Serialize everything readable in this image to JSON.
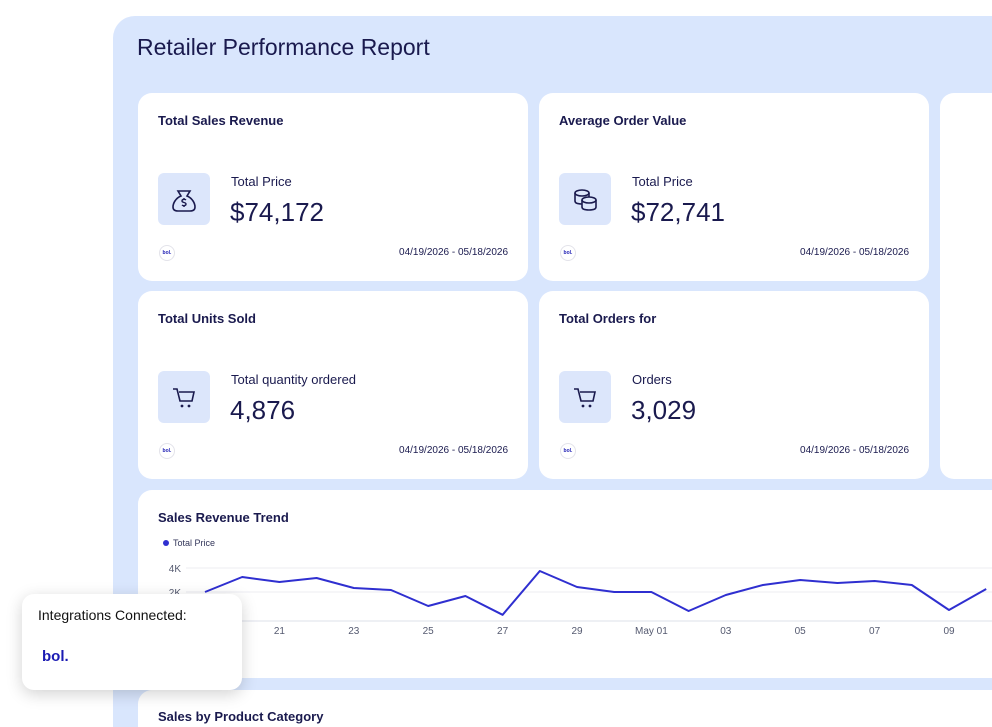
{
  "header": {
    "title": "Retailer Performance Report"
  },
  "cards": [
    {
      "title": "Total Sales Revenue",
      "metric_label": "Total Price",
      "value": "$74,172",
      "source": "bol.",
      "date_range": "04/19/2026 - 05/18/2026"
    },
    {
      "title": "Average Order Value",
      "metric_label": "Total Price",
      "value": "$72,741",
      "source": "bol.",
      "date_range": "04/19/2026 - 05/18/2026"
    },
    {
      "title": "Total Units Sold",
      "metric_label": "Total quantity ordered",
      "value": "4,876",
      "source": "bol.",
      "date_range": "04/19/2026 - 05/18/2026"
    },
    {
      "title": "Total Orders for",
      "metric_label": "Orders",
      "value": "3,029",
      "source": "bol.",
      "date_range": "04/19/2026 - 05/18/2026"
    }
  ],
  "chart_data": {
    "type": "line",
    "title": "Sales Revenue Trend",
    "categories": [
      null,
      null,
      "21",
      null,
      "23",
      null,
      "25",
      null,
      "27",
      null,
      "29",
      null,
      "May 01",
      null,
      "03",
      null,
      "05",
      null,
      "07",
      null,
      "09",
      null
    ],
    "series": [
      {
        "name": "Total Price",
        "color": "#2f2fd0",
        "values": [
          2000,
          3250,
          2830,
          3170,
          2330,
          2170,
          830,
          1670,
          100,
          3750,
          2420,
          2000,
          2000,
          420,
          1750,
          2580,
          3000,
          2750,
          2920,
          2580,
          500,
          2250
        ]
      }
    ],
    "ylim": [
      0,
      4000
    ],
    "yticks": [
      {
        "value": 2000,
        "label": "2K"
      },
      {
        "value": 4000,
        "label": "4K"
      }
    ]
  },
  "sections": {
    "product_category": "Sales by Product Category"
  },
  "integrations": {
    "title": "Integrations Connected:",
    "items": [
      "bol."
    ]
  }
}
